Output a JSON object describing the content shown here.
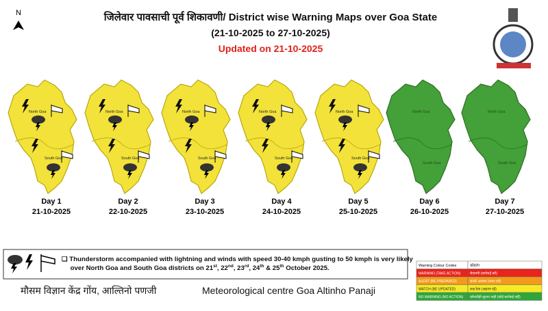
{
  "north_symbol": "N",
  "header": {
    "title": "जिलेवार पावसाची पूर्व शिकावणी/ District wise Warning Maps over Goa State",
    "period": "(21-10-2025 to 27-10-2025)",
    "updated": "Updated on 21-10-2025"
  },
  "districts": [
    "North Goa",
    "South Goa"
  ],
  "maps": [
    {
      "day": "Day 1",
      "date": "21-10-2025",
      "color": "#f2e23a",
      "warning": true
    },
    {
      "day": "Day 2",
      "date": "22-10-2025",
      "color": "#f2e23a",
      "warning": true
    },
    {
      "day": "Day 3",
      "date": "23-10-2025",
      "color": "#f2e23a",
      "warning": true
    },
    {
      "day": "Day 4",
      "date": "24-10-2025",
      "color": "#f2e23a",
      "warning": true
    },
    {
      "day": "Day 5",
      "date": "25-10-2025",
      "color": "#f2e23a",
      "warning": true
    },
    {
      "day": "Day 6",
      "date": "26-10-2025",
      "color": "#44a038",
      "warning": false
    },
    {
      "day": "Day 7",
      "date": "27-10-2025",
      "color": "#44a038",
      "warning": false
    }
  ],
  "legend": {
    "segments": [
      {
        "text": "❑ Thunderstorm accompanied with lightning and winds with speed 30-40 kmph gusting to 50 kmph is very likely over North Goa and South Goa districts on 21"
      },
      {
        "text": "st",
        "sup": true
      },
      {
        "text": ", 22"
      },
      {
        "text": "nd",
        "sup": true
      },
      {
        "text": ", 23"
      },
      {
        "text": "rd",
        "sup": true
      },
      {
        "text": ", 24"
      },
      {
        "text": "th",
        "sup": true
      },
      {
        "text": " & 25"
      },
      {
        "text": "th",
        "sup": true
      },
      {
        "text": " October 2025."
      }
    ]
  },
  "footer": {
    "hindi": "मौसम विज्ञान केंद्र गोंय, आल्तिनो पणजी",
    "english": "Meteorological centre Goa Altinho Panaji"
  },
  "colour_codes": {
    "header": [
      "Warning Colour Codes",
      "कोडरंग"
    ],
    "rows": [
      {
        "label": "WARNING (TAKE ACTION)",
        "local": "चेतावनी (कार्रवाई करें)",
        "color": "#e8241c"
      },
      {
        "label": "ALERT (BE PREPARED)",
        "local": "सतर्क अवस्था (तयार रहो)",
        "color": "#f39a1c"
      },
      {
        "label": "WATCH (BE UPDATED)",
        "local": "लक्ष ठेवा (अद्यतन रहें)",
        "color": "#f5ea25"
      },
      {
        "label": "NO WARNING (NO ACTION)",
        "local": "कोणतीही सूचना नाही (कोई कार्रवाई नहीं)",
        "color": "#2fa63a"
      }
    ]
  }
}
